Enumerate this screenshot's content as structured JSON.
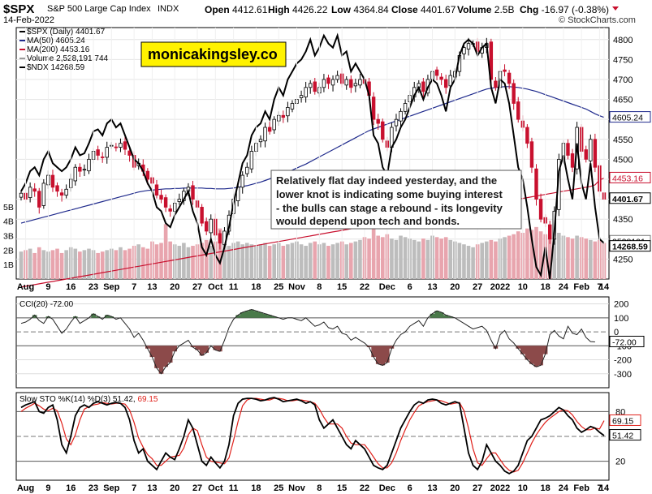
{
  "header": {
    "symbol": "$SPX",
    "name": "S&P 500 Large Cap Index",
    "exchange": "INDX",
    "date": "14-Feb-2022",
    "open_label": "Open",
    "open": "4412.61",
    "high_label": "High",
    "high": "4426.22",
    "low_label": "Low",
    "low": "4364.84",
    "close_label": "Close",
    "close": "4401.67",
    "volume_label": "Volume",
    "volume": "2.5B",
    "chg_label": "Chg",
    "chg": "-16.97 (-0.38%)",
    "brand": "© StockCharts.com"
  },
  "watermark": "monicakingsley.co",
  "annotation": [
    "Relatively flat day indeed yesterday, and the",
    "lower knot is indicating some buying interest",
    "- the bulls can stage a rebound - its longevity",
    "would depend upon tech and bonds."
  ],
  "colors": {
    "up": "#ffffff",
    "down": "#c8102e",
    "candle_outline": "#000000",
    "ma50": "#1f2a8c",
    "ma200": "#c8102e",
    "ndx": "#000000",
    "volume_up": "#bdbdbd",
    "volume_down": "#e8a5ae",
    "cci_pos": "#4a7a4a",
    "cci_neg": "#8c4a4a",
    "sto_k": "#000000",
    "sto_d": "#e0201a"
  },
  "chart_data": [
    {
      "type": "candlestick",
      "panel": "price",
      "legend": [
        {
          "label": "$SPX (Daily) 4401.67",
          "color": "#000000"
        },
        {
          "label": "MA(50) 4605.24",
          "color": "#1f2a8c"
        },
        {
          "label": "MA(200) 4453.16",
          "color": "#c8102e"
        },
        {
          "label": "Volume 2,528,191,744",
          "color": "#999999"
        },
        {
          "label": "$NDX 14268.59",
          "color": "#000000"
        }
      ],
      "ylim": [
        4200,
        4830
      ],
      "yticks": [
        "4800",
        "4750",
        "4700",
        "4650",
        "4600",
        "4550",
        "4500",
        "4450",
        "4400",
        "4350",
        "4300",
        "4250"
      ],
      "volume_ticks": [
        "5B",
        "4B",
        "3B",
        "2B",
        "1B"
      ],
      "volume_ylim": [
        0,
        5.5
      ],
      "close": [
        4415,
        4400,
        4430,
        4420,
        4380,
        4440,
        4460,
        4430,
        4420,
        4410,
        4425,
        4450,
        4480,
        4470,
        4475,
        4500,
        4520,
        4510,
        4505,
        4530,
        4535,
        4530,
        4540,
        4525,
        4510,
        4480,
        4490,
        4470,
        4450,
        4440,
        4410,
        4400,
        4380,
        4370,
        4390,
        4400,
        4420,
        4430,
        4400,
        4380,
        4340,
        4320,
        4350,
        4310,
        4290,
        4320,
        4360,
        4400,
        4430,
        4460,
        4480,
        4520,
        4540,
        4550,
        4580,
        4570,
        4600,
        4610,
        4605,
        4630,
        4640,
        4650,
        4660,
        4680,
        4690,
        4670,
        4680,
        4700,
        4690,
        4700,
        4710,
        4690,
        4700,
        4680,
        4690,
        4700,
        4690,
        4660,
        4600,
        4590,
        4550,
        4530,
        4580,
        4600,
        4620,
        4640,
        4660,
        4680,
        4690,
        4670,
        4700,
        4720,
        4710,
        4700,
        4680,
        4710,
        4720,
        4760,
        4780,
        4790,
        4790,
        4770,
        4780,
        4790,
        4700,
        4680,
        4720,
        4720,
        4690,
        4640,
        4600,
        4580,
        4540,
        4480,
        4400,
        4350,
        4340,
        4300,
        4370,
        4500,
        4540,
        4510,
        4480,
        4580,
        4520,
        4500,
        4550,
        4480,
        4420,
        4400
      ],
      "ma50": [
        4340,
        4343,
        4346,
        4349,
        4352,
        4355,
        4358,
        4361,
        4364,
        4367,
        4370,
        4373,
        4376,
        4379,
        4382,
        4385,
        4388,
        4391,
        4394,
        4397,
        4400,
        4403,
        4406,
        4409,
        4412,
        4415,
        4418,
        4420,
        4422,
        4423,
        4424,
        4425,
        4426,
        4426,
        4427,
        4427,
        4428,
        4428,
        4428,
        4428,
        4428,
        4427,
        4427,
        4426,
        4426,
        4426,
        4427,
        4428,
        4430,
        4432,
        4434,
        4437,
        4440,
        4443,
        4447,
        4451,
        4455,
        4459,
        4463,
        4468,
        4473,
        4478,
        4483,
        4488,
        4494,
        4500,
        4506,
        4512,
        4518,
        4524,
        4530,
        4536,
        4542,
        4548,
        4554,
        4560,
        4566,
        4572,
        4576,
        4580,
        4584,
        4588,
        4592,
        4596,
        4600,
        4604,
        4608,
        4612,
        4616,
        4620,
        4624,
        4628,
        4632,
        4636,
        4640,
        4644,
        4648,
        4652,
        4656,
        4660,
        4664,
        4668,
        4672,
        4676,
        4678,
        4680,
        4681,
        4682,
        4682,
        4681,
        4680,
        4678,
        4676,
        4673,
        4670,
        4666,
        4662,
        4658,
        4654,
        4650,
        4646,
        4642,
        4638,
        4634,
        4630,
        4626,
        4620,
        4614,
        4609,
        4605
      ],
      "ma200": [
        4180,
        4182,
        4184,
        4186,
        4188,
        4190,
        4192,
        4194,
        4196,
        4198,
        4200,
        4202,
        4204,
        4206,
        4208,
        4210,
        4212,
        4214,
        4216,
        4218,
        4220,
        4222,
        4224,
        4226,
        4228,
        4230,
        4232,
        4234,
        4236,
        4238,
        4240,
        4242,
        4244,
        4246,
        4248,
        4250,
        4252,
        4254,
        4256,
        4258,
        4260,
        4262,
        4264,
        4266,
        4268,
        4270,
        4272,
        4274,
        4276,
        4278,
        4280,
        4282,
        4284,
        4286,
        4288,
        4290,
        4292,
        4294,
        4296,
        4298,
        4300,
        4302,
        4304,
        4306,
        4308,
        4310,
        4312,
        4314,
        4316,
        4318,
        4320,
        4322,
        4324,
        4326,
        4328,
        4330,
        4332,
        4334,
        4336,
        4338,
        4340,
        4342,
        4344,
        4346,
        4348,
        4350,
        4352,
        4354,
        4356,
        4358,
        4360,
        4362,
        4364,
        4366,
        4368,
        4370,
        4372,
        4374,
        4376,
        4378,
        4380,
        4382,
        4384,
        4386,
        4388,
        4390,
        4392,
        4394,
        4396,
        4398,
        4400,
        4402,
        4404,
        4406,
        4408,
        4410,
        4412,
        4414,
        4416,
        4418,
        4420,
        4422,
        4424,
        4426,
        4428,
        4430,
        4432,
        4436,
        4448,
        4453
      ],
      "ndx_scaled": [
        4420,
        4440,
        4470,
        4480,
        4460,
        4500,
        4520,
        4490,
        4480,
        4470,
        4480,
        4500,
        4530,
        4510,
        4515,
        4540,
        4570,
        4575,
        4560,
        4590,
        4600,
        4580,
        4590,
        4560,
        4530,
        4500,
        4490,
        4470,
        4440,
        4420,
        4380,
        4370,
        4340,
        4330,
        4360,
        4380,
        4400,
        4420,
        4370,
        4340,
        4280,
        4260,
        4300,
        4260,
        4240,
        4280,
        4330,
        4390,
        4440,
        4490,
        4510,
        4560,
        4580,
        4590,
        4620,
        4600,
        4650,
        4680,
        4660,
        4700,
        4720,
        4740,
        4750,
        4770,
        4800,
        4760,
        4780,
        4810,
        4790,
        4780,
        4810,
        4760,
        4770,
        4720,
        4740,
        4720,
        4700,
        4660,
        4560,
        4540,
        4480,
        4460,
        4530,
        4550,
        4580,
        4600,
        4630,
        4660,
        4680,
        4650,
        4680,
        4700,
        4690,
        4660,
        4620,
        4680,
        4700,
        4760,
        4790,
        4800,
        4790,
        4760,
        4780,
        4790,
        4680,
        4640,
        4700,
        4690,
        4640,
        4560,
        4480,
        4450,
        4380,
        4300,
        4230,
        4210,
        4280,
        4200,
        4320,
        4470,
        4510,
        4450,
        4400,
        4540,
        4440,
        4400,
        4490,
        4380,
        4300,
        4290
      ],
      "volume": [
        1.9,
        2.0,
        2.1,
        1.8,
        2.2,
        2.0,
        1.9,
        2.0,
        2.1,
        1.8,
        2.0,
        2.2,
        2.1,
        1.9,
        2.0,
        2.1,
        2.0,
        1.8,
        1.9,
        2.0,
        2.1,
        2.0,
        2.2,
        2.0,
        2.1,
        2.3,
        2.4,
        2.2,
        2.1,
        2.6,
        2.4,
        2.5,
        3.8,
        2.6,
        2.4,
        2.3,
        2.5,
        2.2,
        2.3,
        2.4,
        2.5,
        2.7,
        2.3,
        2.6,
        3.5,
        2.4,
        2.3,
        2.5,
        2.6,
        2.4,
        2.5,
        2.4,
        2.3,
        2.4,
        2.5,
        2.3,
        2.4,
        2.5,
        2.3,
        2.4,
        2.5,
        2.6,
        2.4,
        2.3,
        2.5,
        2.6,
        2.4,
        2.5,
        2.3,
        2.4,
        2.5,
        2.6,
        2.4,
        2.5,
        2.6,
        2.7,
        2.9,
        2.8,
        3.6,
        3.0,
        2.9,
        3.1,
        2.8,
        2.7,
        3.0,
        2.9,
        2.8,
        2.7,
        2.6,
        2.8,
        2.7,
        3.0,
        2.9,
        2.8,
        2.9,
        2.7,
        2.6,
        2.5,
        2.4,
        2.3,
        2.2,
        2.4,
        2.5,
        2.6,
        2.7,
        2.6,
        2.8,
        2.9,
        3.0,
        3.1,
        3.3,
        3.2,
        3.5,
        3.4,
        3.6,
        3.3,
        3.1,
        3.0,
        2.9,
        3.2,
        3.0,
        2.9,
        2.8,
        3.0,
        2.9,
        2.8,
        2.7,
        2.6,
        2.7,
        2.5
      ],
      "right_tags": [
        {
          "label": "4605.24",
          "value": 4605.24
        },
        {
          "label": "4453.16",
          "value": 4453.16
        },
        {
          "label": "4401.67",
          "value": 4401.67
        },
        {
          "label": "2528191",
          "value": 4295
        },
        {
          "label": "14268.59",
          "value": 4282
        }
      ],
      "xticks": [
        "Aug",
        "9",
        "16",
        "23",
        "Sep",
        "7",
        "13",
        "20",
        "27",
        "Oct",
        "11",
        "18",
        "25",
        "Nov",
        "8",
        "15",
        "22",
        "Dec",
        "6",
        "13",
        "20",
        "27",
        "2022",
        "10",
        "18",
        "24",
        "Feb",
        "7",
        "14"
      ]
    },
    {
      "type": "line",
      "panel": "cci",
      "legend": "CCI(20) -72.00",
      "ylim": [
        -400,
        250
      ],
      "yticks": [
        "200",
        "100",
        "0",
        "-100",
        "-200",
        "-300"
      ],
      "value_tag": "-72.00",
      "values": [
        60,
        70,
        90,
        120,
        80,
        60,
        110,
        90,
        40,
        -10,
        20,
        70,
        110,
        60,
        80,
        100,
        130,
        110,
        90,
        120,
        110,
        90,
        100,
        60,
        20,
        -40,
        -10,
        -60,
        -120,
        -180,
        -260,
        -300,
        -250,
        -220,
        -140,
        -100,
        -80,
        -60,
        -110,
        -130,
        -170,
        -150,
        -100,
        -130,
        -140,
        -60,
        30,
        90,
        120,
        140,
        150,
        160,
        150,
        140,
        130,
        120,
        110,
        100,
        90,
        100,
        100,
        90,
        80,
        100,
        70,
        40,
        50,
        70,
        30,
        20,
        40,
        -10,
        -20,
        -60,
        -40,
        -60,
        -80,
        -110,
        -180,
        -230,
        -240,
        -220,
        -120,
        -60,
        -20,
        0,
        40,
        60,
        80,
        40,
        100,
        130,
        150,
        140,
        120,
        110,
        100,
        80,
        60,
        40,
        20,
        30,
        40,
        10,
        -60,
        -120,
        -20,
        10,
        -50,
        -80,
        -120,
        -160,
        -200,
        -230,
        -250,
        -240,
        -160,
        -20,
        10,
        -30,
        -50,
        40,
        -10,
        -20,
        20,
        -40,
        -70,
        -72
      ],
      "ndx_values": [],
      "annotations": []
    },
    {
      "type": "line",
      "panel": "stochastic",
      "legend_prefix": "Slow STO %K(14) %D(3) ",
      "legend_k": "51.42,",
      "legend_d": "69.15",
      "ylim": [
        0,
        100
      ],
      "yticks": [
        "80",
        "50",
        "20"
      ],
      "k_tag": "51.42",
      "d_tag": "69.15",
      "k": [
        85,
        88,
        90,
        92,
        80,
        78,
        85,
        88,
        70,
        40,
        30,
        50,
        75,
        85,
        88,
        85,
        90,
        92,
        90,
        88,
        90,
        91,
        90,
        85,
        70,
        45,
        30,
        35,
        20,
        15,
        10,
        20,
        30,
        25,
        22,
        35,
        50,
        70,
        60,
        40,
        20,
        15,
        25,
        18,
        12,
        20,
        40,
        75,
        90,
        95,
        96,
        96,
        95,
        93,
        94,
        96,
        97,
        95,
        92,
        93,
        94,
        95,
        93,
        90,
        92,
        88,
        70,
        60,
        65,
        70,
        60,
        50,
        40,
        35,
        45,
        40,
        35,
        25,
        15,
        12,
        10,
        15,
        30,
        45,
        60,
        70,
        80,
        88,
        92,
        90,
        94,
        95,
        94,
        90,
        88,
        90,
        92,
        90,
        60,
        30,
        15,
        10,
        20,
        40,
        30,
        20,
        15,
        8,
        5,
        8,
        15,
        30,
        45,
        50,
        60,
        70,
        72,
        75,
        80,
        85,
        82,
        75,
        70,
        60,
        55,
        58,
        62,
        60,
        55,
        51
      ],
      "d": [
        80,
        84,
        87,
        90,
        87,
        83,
        81,
        84,
        81,
        66,
        47,
        40,
        52,
        70,
        83,
        86,
        88,
        89,
        91,
        90,
        89,
        90,
        90,
        89,
        82,
        67,
        48,
        37,
        28,
        23,
        15,
        15,
        20,
        25,
        26,
        27,
        36,
        52,
        60,
        57,
        40,
        25,
        20,
        19,
        18,
        17,
        24,
        45,
        68,
        87,
        94,
        96,
        96,
        95,
        94,
        94,
        96,
        96,
        95,
        93,
        93,
        94,
        94,
        93,
        92,
        90,
        83,
        73,
        65,
        65,
        65,
        60,
        50,
        42,
        40,
        40,
        40,
        33,
        25,
        17,
        12,
        12,
        18,
        30,
        45,
        58,
        70,
        79,
        87,
        90,
        92,
        93,
        94,
        93,
        91,
        89,
        90,
        91,
        81,
        60,
        35,
        18,
        15,
        23,
        30,
        30,
        22,
        14,
        9,
        7,
        9,
        18,
        30,
        42,
        52,
        60,
        67,
        72,
        76,
        80,
        82,
        81,
        76,
        68,
        62,
        58,
        58,
        60,
        59,
        69
      ]
    }
  ]
}
